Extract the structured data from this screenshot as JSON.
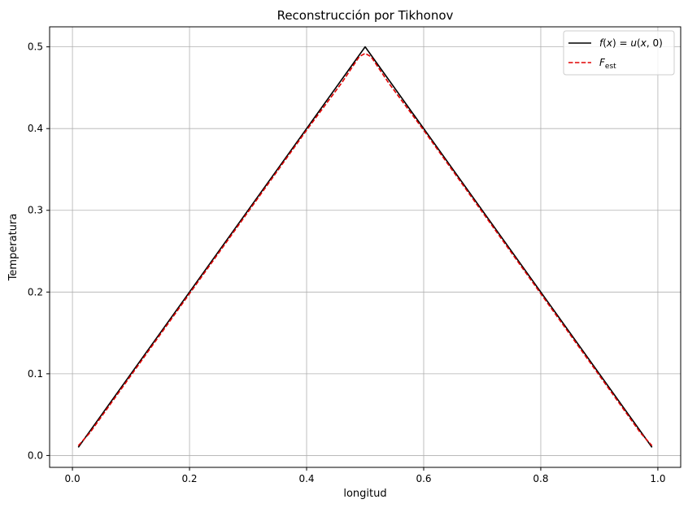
{
  "chart_data": {
    "type": "line",
    "title": "Reconstrucción por Tikhonov",
    "xlabel": "longitud",
    "ylabel": "Temperatura",
    "xlim": [
      -0.039,
      1.039
    ],
    "ylim": [
      -0.0145,
      0.5245
    ],
    "xticks": [
      0.0,
      0.2,
      0.4,
      0.6,
      0.8,
      1.0
    ],
    "xtick_labels": [
      "0.0",
      "0.2",
      "0.4",
      "0.6",
      "0.8",
      "1.0"
    ],
    "yticks": [
      0.0,
      0.1,
      0.2,
      0.3,
      0.4,
      0.5
    ],
    "ytick_labels": [
      "0.0",
      "0.1",
      "0.2",
      "0.3",
      "0.4",
      "0.5"
    ],
    "grid": true,
    "legend_position": "top-right",
    "series": [
      {
        "name": "f(x) = u(x, 0)",
        "color": "#000000",
        "style": "solid",
        "x": [
          0.01,
          0.5,
          0.99
        ],
        "y": [
          0.01,
          0.5,
          0.01
        ]
      },
      {
        "name": "F_est",
        "color": "#e00000",
        "style": "dashed",
        "x": [
          0.01,
          0.03,
          0.1,
          0.2,
          0.3,
          0.4,
          0.46,
          0.49,
          0.5,
          0.51,
          0.54,
          0.6,
          0.7,
          0.8,
          0.9,
          0.97,
          0.99
        ],
        "y": [
          0.012,
          0.028,
          0.098,
          0.198,
          0.298,
          0.398,
          0.456,
          0.488,
          0.492,
          0.488,
          0.456,
          0.398,
          0.298,
          0.198,
          0.098,
          0.028,
          0.012
        ]
      }
    ]
  }
}
